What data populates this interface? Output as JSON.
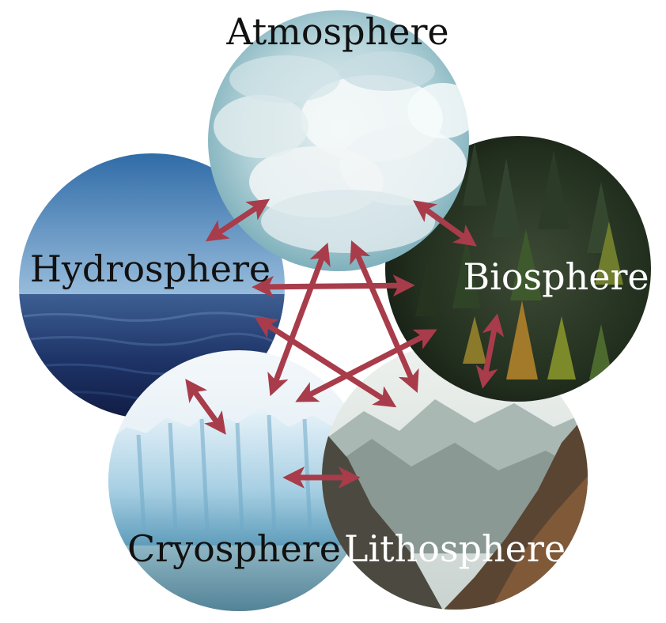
{
  "spheres": {
    "atmosphere": {
      "label": "Atmosphere"
    },
    "hydrosphere": {
      "label": "Hydrosphere"
    },
    "biosphere": {
      "label": "Biosphere"
    },
    "cryosphere": {
      "label": "Cryosphere"
    },
    "lithosphere": {
      "label": "Lithosphere"
    }
  },
  "colors": {
    "arrow": "#a83c4a",
    "text_dark": "#111111",
    "text_light": "#ffffff"
  },
  "icons": [
    "clouds-image",
    "ocean-image",
    "forest-image",
    "glacier-image",
    "mountains-image"
  ]
}
